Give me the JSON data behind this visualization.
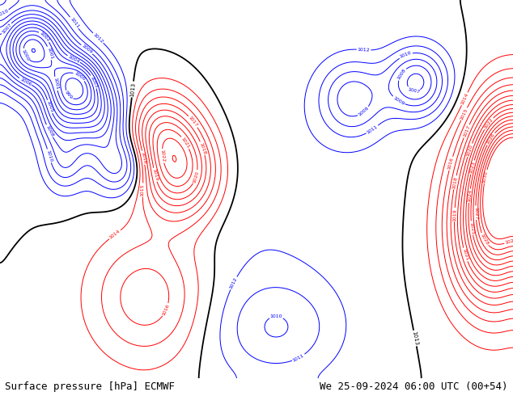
{
  "title_left": "Surface pressure [hPa] ECMWF",
  "title_right": "We 25-09-2024 06:00 UTC (00+54)",
  "title_fontsize": 9,
  "fig_width": 6.34,
  "fig_height": 4.9,
  "dpi": 100,
  "text_color": "#000000",
  "land_green": "#aad484",
  "ocean_blue": "#c8ddf0",
  "gray_land": "#b8b8b8",
  "bottom_bar": "#d0d0d0"
}
